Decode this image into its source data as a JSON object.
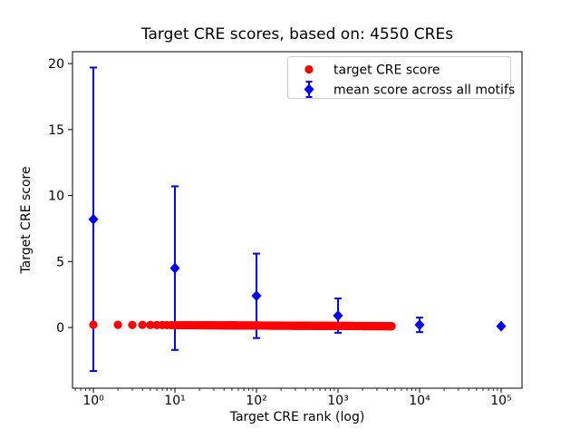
{
  "chart_data": {
    "type": "scatter",
    "title": "Target CRE scores, based on: 4550 CREs",
    "xlabel": "Target CRE rank (log)",
    "ylabel": "Target CRE score",
    "x_scale": "log",
    "xlim_log10": [
      -0.256,
      5.256
    ],
    "ylim": [
      -4.6,
      20.9
    ],
    "x_ticks": {
      "values": [
        1,
        10,
        100,
        1000,
        10000,
        100000
      ],
      "labels": [
        "10⁰",
        "10¹",
        "10²",
        "10³",
        "10⁴",
        "10⁵"
      ]
    },
    "y_ticks": {
      "values": [
        0,
        5,
        10,
        15,
        20
      ],
      "labels": [
        "0",
        "5",
        "10",
        "15",
        "20"
      ]
    },
    "grid": false,
    "legend_position": "upper right",
    "series": [
      {
        "name": "target CRE score",
        "marker": "circle",
        "color": "#ff0000",
        "point_count": 4550,
        "rank_min": 1,
        "rank_max": 4550,
        "score_at_rank_min": 0.21,
        "score_at_rank_max": 0.1,
        "y_model": "scores hug zero: ~0.21 at rank 1 declining gently to ~0.10 at rank 4550 (linear in log10 rank)"
      },
      {
        "name": "mean score across all motifs",
        "marker": "diamond",
        "color": "#0000ff",
        "x": [
          1,
          10,
          100,
          1000,
          10000,
          100000
        ],
        "y": [
          8.2,
          4.5,
          2.4,
          0.9,
          0.2,
          0.1
        ],
        "yerr": [
          11.5,
          6.2,
          3.2,
          1.3,
          0.55,
          0.15
        ]
      }
    ]
  },
  "legend": {
    "items": [
      {
        "label": "target CRE score",
        "marker": "circle-marker",
        "color": "#ff0000"
      },
      {
        "label": "mean score across all motifs",
        "marker": "diamond-errorbar-marker",
        "color": "#0000ff"
      }
    ]
  },
  "colors": {
    "target_series": "#ff0000",
    "mean_series": "#0000ff",
    "axis": "#000000",
    "legend_border": "#cccccc",
    "background": "#ffffff"
  }
}
